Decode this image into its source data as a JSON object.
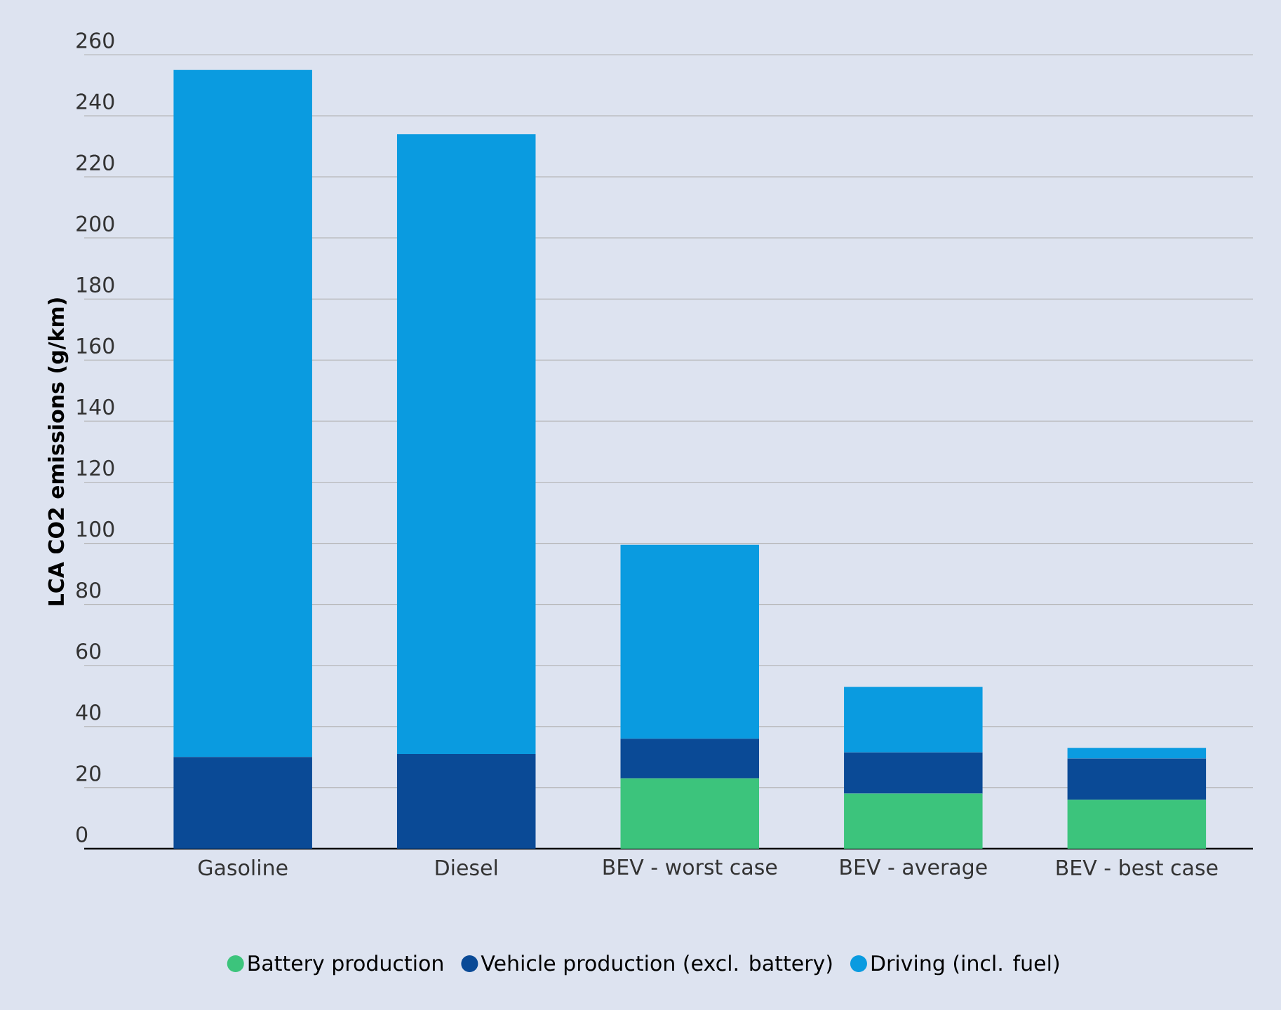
{
  "chart_data": {
    "type": "bar",
    "stacked": true,
    "ylabel": "LCA CO2 emissions (g/km)",
    "categories": [
      "Gasoline",
      "Diesel",
      "BEV - worst case",
      "BEV - average",
      "BEV - best case"
    ],
    "series": [
      {
        "name": "Battery production",
        "color": "#3cc47c",
        "values": [
          0,
          0,
          23,
          18,
          16
        ]
      },
      {
        "name": "Vehicle production (excl. battery)",
        "color": "#0a4a96",
        "values": [
          30,
          31,
          13,
          13.5,
          13.5
        ]
      },
      {
        "name": "Driving (incl. fuel)",
        "color": "#0a9be0",
        "values": [
          225,
          203,
          63.5,
          21.5,
          3.5
        ]
      }
    ],
    "ylim": [
      0,
      260
    ],
    "yticks": [
      0,
      20,
      40,
      60,
      80,
      100,
      120,
      140,
      160,
      180,
      200,
      220,
      240,
      260
    ],
    "grid": "y",
    "legend": "bottom"
  }
}
